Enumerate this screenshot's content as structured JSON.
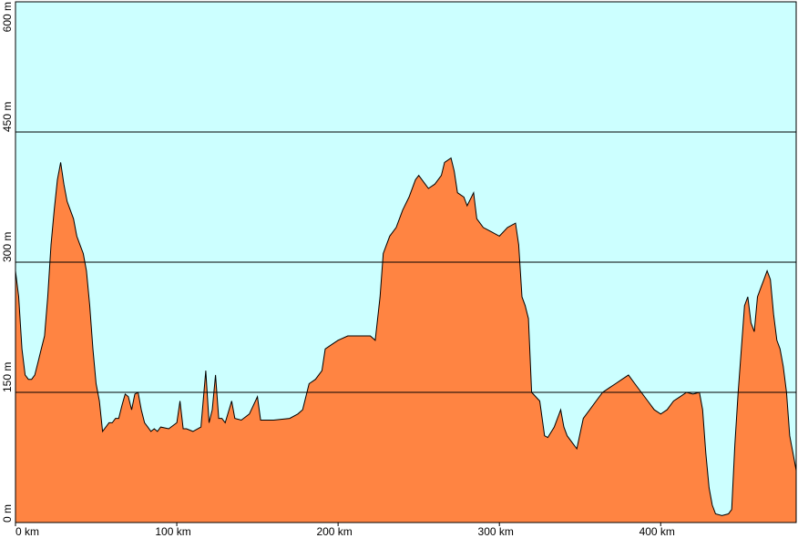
{
  "chart_data": {
    "type": "area",
    "x": [
      0,
      2,
      4,
      6,
      8,
      10,
      12,
      14,
      16,
      18,
      20,
      22,
      24,
      26,
      28,
      30,
      32,
      34,
      36,
      38,
      40,
      42,
      44,
      46,
      48,
      50,
      52,
      54,
      56,
      58,
      60,
      62,
      64,
      66,
      68,
      70,
      72,
      74,
      76,
      78,
      80,
      82,
      84,
      86,
      88,
      90,
      95,
      100,
      102,
      104,
      106,
      110,
      115,
      118,
      120,
      122,
      124,
      126,
      128,
      130,
      134,
      136,
      140,
      145,
      150,
      152,
      160,
      170,
      175,
      178,
      182,
      186,
      190,
      192,
      196,
      200,
      206,
      210,
      215,
      220,
      223,
      226,
      228,
      232,
      236,
      240,
      244,
      248,
      250,
      254,
      256,
      260,
      264,
      266,
      270,
      272,
      274,
      278,
      280,
      284,
      286,
      290,
      295,
      300,
      305,
      310,
      312,
      314,
      316,
      318,
      320,
      325,
      328,
      330,
      334,
      338,
      340,
      342,
      346,
      348,
      352,
      356,
      360,
      364,
      368,
      372,
      376,
      380,
      384,
      388,
      392,
      396,
      400,
      404,
      408,
      412,
      416,
      420,
      424,
      426,
      428,
      430,
      432,
      434,
      438,
      442,
      444,
      446,
      448,
      450,
      452,
      454,
      456,
      458,
      460,
      462,
      464,
      466,
      468,
      470,
      472,
      474,
      476,
      478,
      480,
      482,
      484
    ],
    "values": [
      290,
      260,
      200,
      170,
      165,
      165,
      170,
      185,
      200,
      215,
      260,
      320,
      360,
      395,
      415,
      390,
      370,
      360,
      350,
      330,
      320,
      310,
      290,
      250,
      200,
      160,
      140,
      105,
      110,
      115,
      115,
      120,
      120,
      135,
      148,
      145,
      130,
      148,
      150,
      130,
      115,
      110,
      105,
      108,
      105,
      110,
      108,
      115,
      140,
      108,
      108,
      105,
      110,
      175,
      115,
      130,
      170,
      120,
      120,
      115,
      140,
      120,
      118,
      125,
      145,
      118,
      118,
      120,
      125,
      130,
      160,
      165,
      175,
      200,
      205,
      210,
      215,
      215,
      215,
      215,
      210,
      260,
      310,
      330,
      340,
      360,
      375,
      395,
      400,
      390,
      385,
      390,
      400,
      415,
      420,
      405,
      380,
      375,
      365,
      380,
      350,
      340,
      335,
      330,
      340,
      345,
      320,
      260,
      250,
      235,
      150,
      140,
      100,
      98,
      110,
      130,
      110,
      100,
      90,
      85,
      120,
      130,
      140,
      150,
      155,
      160,
      165,
      170,
      160,
      150,
      140,
      130,
      125,
      130,
      140,
      145,
      150,
      148,
      150,
      130,
      80,
      40,
      20,
      10,
      8,
      10,
      15,
      90,
      150,
      200,
      250,
      260,
      230,
      220,
      260,
      270,
      280,
      290,
      280,
      240,
      210,
      200,
      180,
      150,
      100,
      80,
      60
    ],
    "color": "#ff8442",
    "background": "#ccffff",
    "xlim": [
      0,
      484
    ],
    "ylim": [
      0,
      600
    ],
    "xticks": [
      {
        "value": 0,
        "label": "0 km"
      },
      {
        "value": 100,
        "label": "100 km"
      },
      {
        "value": 200,
        "label": "200 km"
      },
      {
        "value": 300,
        "label": "300 km"
      },
      {
        "value": 400,
        "label": "400 km"
      }
    ],
    "yticks": [
      {
        "value": 0,
        "label": "0 m"
      },
      {
        "value": 150,
        "label": "150 m"
      },
      {
        "value": 300,
        "label": "300 m"
      },
      {
        "value": 450,
        "label": "450 m"
      },
      {
        "value": 600,
        "label": "600 m"
      }
    ],
    "grid": true
  }
}
